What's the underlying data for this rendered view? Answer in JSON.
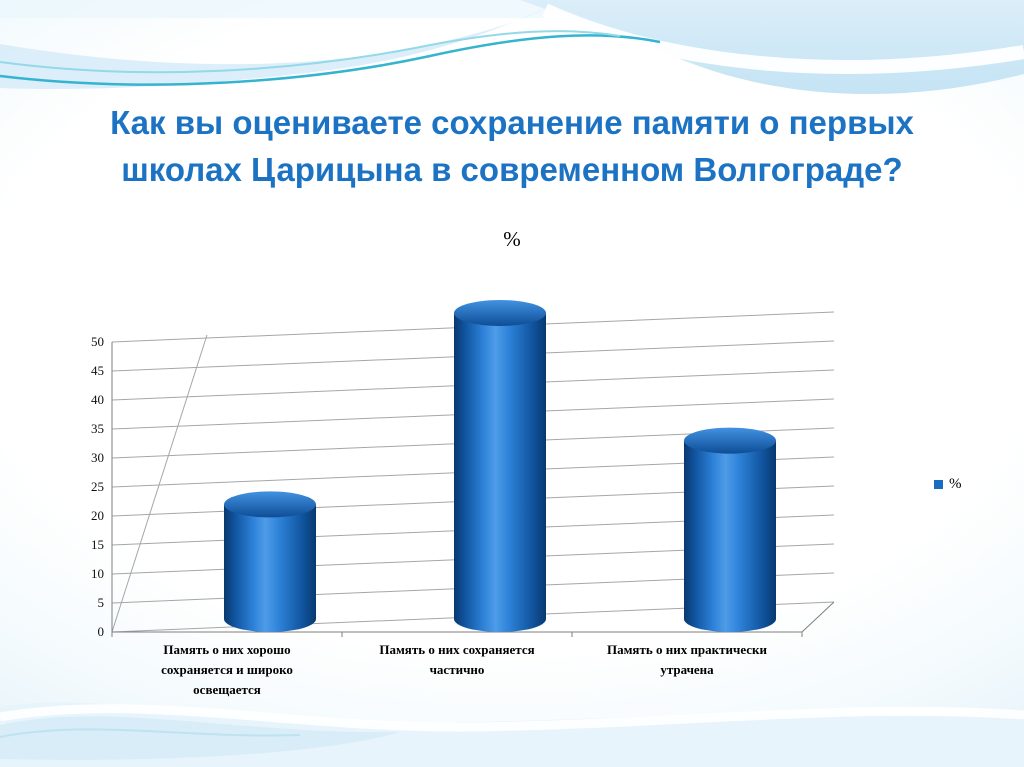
{
  "slide": {
    "title": "Как вы оцениваете сохранение памяти о первых школах Царицына в современном Волгограде?",
    "title_lines": [
      "Как вы оцениваете сохранение памяти о первых",
      "школах Царицына в современном Волгограде?"
    ]
  },
  "colors": {
    "title": "#1d73c3",
    "legend_swatch": "#1b6cc0",
    "bar_edge": "#08396f",
    "bar_dark": "#11549f",
    "bar_mid": "#2d82d8",
    "bar_light": "#4e9ce8",
    "bar_top_light": "#4292e2",
    "bar_top_dark": "#0e4d96",
    "grid": "#a6a6a6",
    "axis": "#7f7f7f"
  },
  "chart_data": {
    "type": "bar",
    "subtype": "3d-cylinder",
    "title": "%",
    "categories": [
      "Память о них хорошо сохраняется и широко освещается",
      "Память о них сохраняется частично",
      "Память о них практически утрачена"
    ],
    "series": [
      {
        "name": "%",
        "values": [
          22,
          55,
          33
        ]
      }
    ],
    "ylim": [
      0,
      50
    ],
    "yticks": [
      0,
      5,
      10,
      15,
      20,
      25,
      30,
      35,
      40,
      45,
      50
    ],
    "xlabel": "",
    "ylabel": "",
    "grid": true,
    "legend": {
      "position": "right",
      "entries": [
        "%"
      ]
    }
  }
}
